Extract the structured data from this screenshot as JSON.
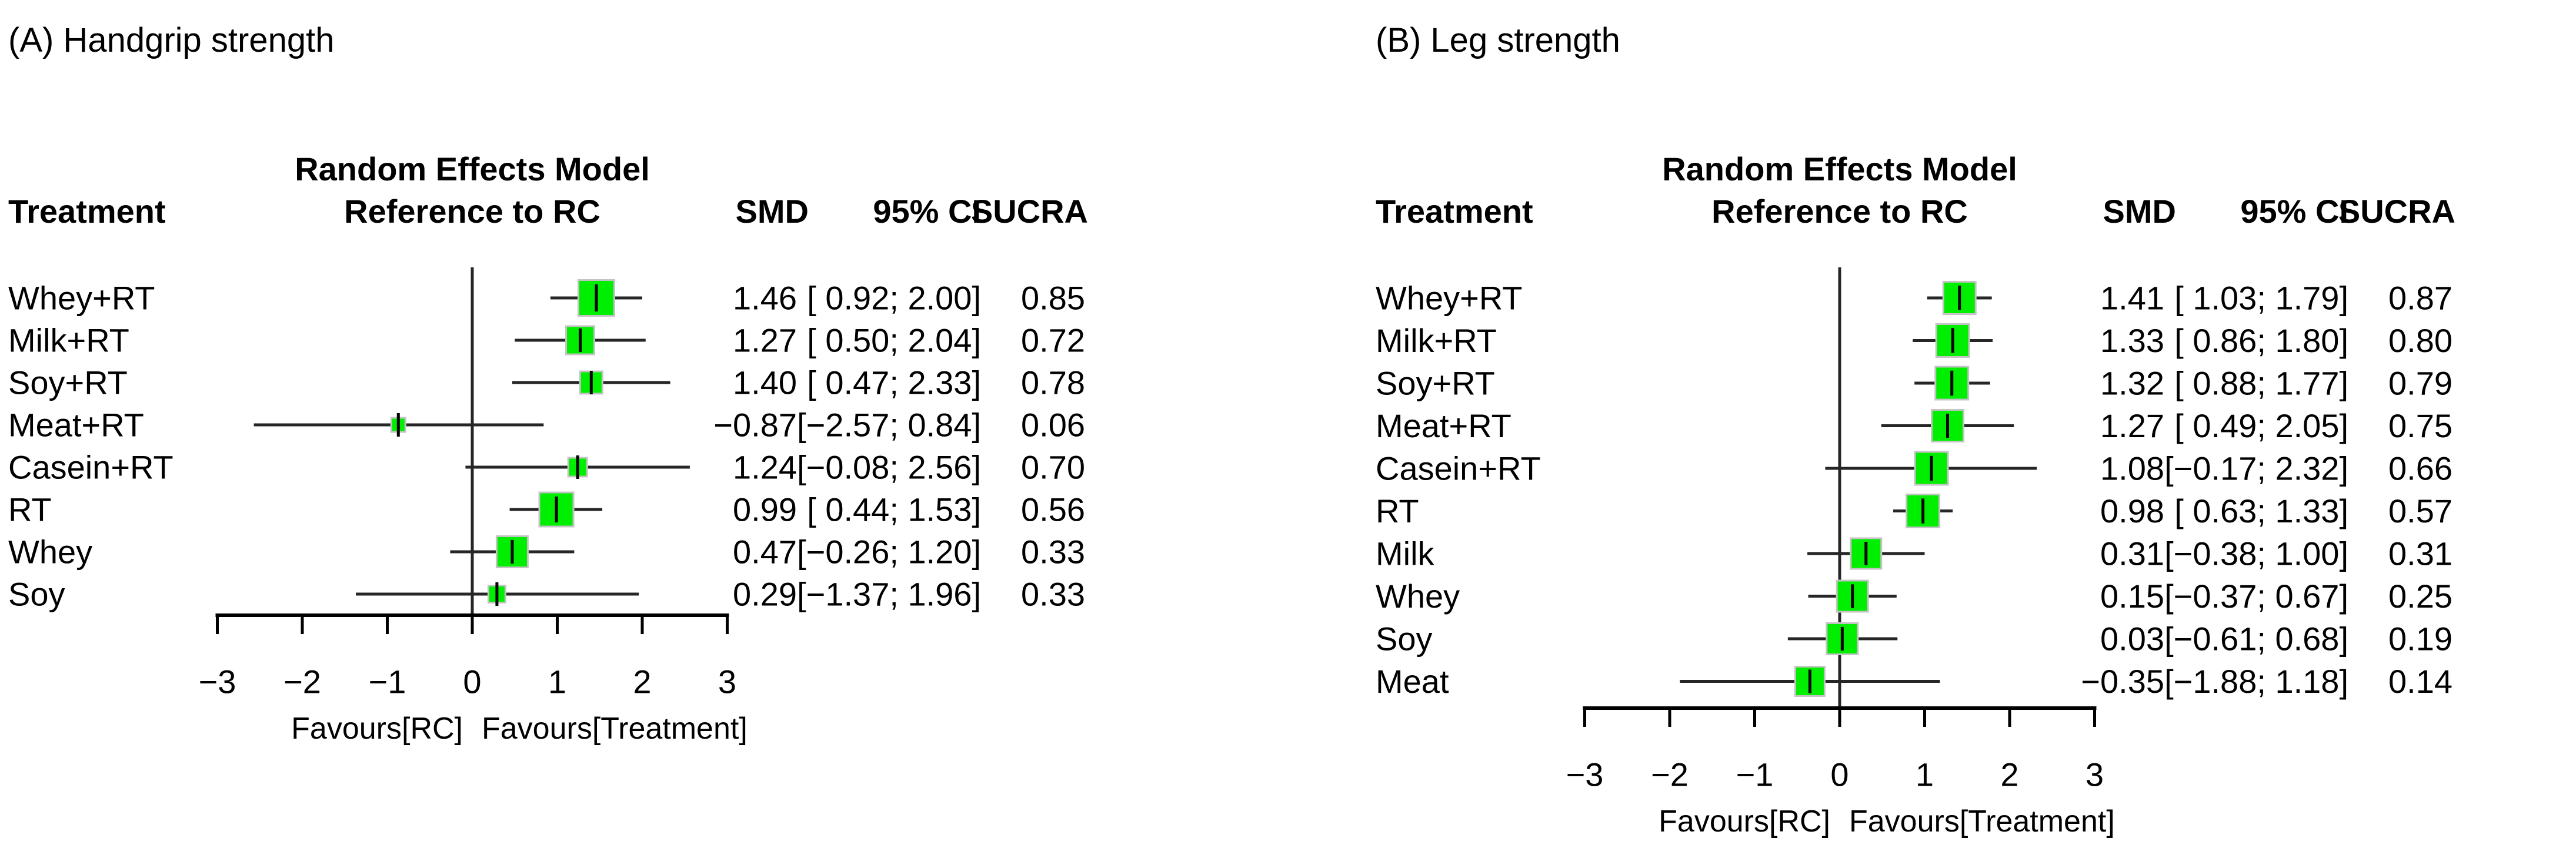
{
  "figure": {
    "background": "#ffffff",
    "colors": {
      "square_fill": "#00EE00",
      "square_border": "#c4c4c4",
      "ci_line": "#262626",
      "axis_line": "#000000",
      "text": "#000000"
    }
  },
  "chart_data": [
    {
      "type": "forest",
      "title": "(A) Handgrip strength",
      "header": {
        "model": "Random Effects Model",
        "treatment": "Treatment",
        "reference": "Reference to RC",
        "smd": "SMD",
        "ci": "95% CI",
        "sucra": "SUCRA"
      },
      "xlim": [
        -3,
        3
      ],
      "x_tick_values": [
        -3,
        -2,
        -1,
        0,
        1,
        2,
        3
      ],
      "x_tick_labels": [
        "−3",
        "−2",
        "−1",
        "0",
        "1",
        "2",
        "3"
      ],
      "xlabel_left": "Favours[RC]",
      "xlabel_right": "Favours[Treatment]",
      "zero_line": 0,
      "rows": [
        {
          "treatment": "Whey+RT",
          "smd": 1.46,
          "ci_low": 0.92,
          "ci_high": 2.0,
          "smd_label": "1.46",
          "ci_label": "[ 0.92; 2.00]",
          "sucra_label": "0.85",
          "square_size": 61
        },
        {
          "treatment": "Milk+RT",
          "smd": 1.27,
          "ci_low": 0.5,
          "ci_high": 2.04,
          "smd_label": "1.27",
          "ci_label": "[ 0.50; 2.04]",
          "sucra_label": "0.72",
          "square_size": 48
        },
        {
          "treatment": "Soy+RT",
          "smd": 1.4,
          "ci_low": 0.47,
          "ci_high": 2.33,
          "smd_label": "1.40",
          "ci_label": "[ 0.47; 2.33]",
          "sucra_label": "0.78",
          "square_size": 38
        },
        {
          "treatment": "Meat+RT",
          "smd": -0.87,
          "ci_low": -2.57,
          "ci_high": 0.84,
          "smd_label": "−0.87",
          "ci_label": "[−2.57; 0.84]",
          "sucra_label": "0.06",
          "square_size": 24
        },
        {
          "treatment": "Casein+RT",
          "smd": 1.24,
          "ci_low": -0.08,
          "ci_high": 2.56,
          "smd_label": "1.24",
          "ci_label": "[−0.08; 2.56]",
          "sucra_label": "0.70",
          "square_size": 32
        },
        {
          "treatment": "RT",
          "smd": 0.99,
          "ci_low": 0.44,
          "ci_high": 1.53,
          "smd_label": "0.99",
          "ci_label": "[ 0.44; 1.53]",
          "sucra_label": "0.56",
          "square_size": 58
        },
        {
          "treatment": "Whey",
          "smd": 0.47,
          "ci_low": -0.26,
          "ci_high": 1.2,
          "smd_label": "0.47",
          "ci_label": "[−0.26; 1.20]",
          "sucra_label": "0.33",
          "square_size": 53
        },
        {
          "treatment": "Soy",
          "smd": 0.29,
          "ci_low": -1.37,
          "ci_high": 1.96,
          "smd_label": "0.29",
          "ci_label": "[−1.37; 1.96]",
          "sucra_label": "0.33",
          "square_size": 29
        }
      ]
    },
    {
      "type": "forest",
      "title": "(B) Leg strength",
      "header": {
        "model": "Random Effects Model",
        "treatment": "Treatment",
        "reference": "Reference to RC",
        "smd": "SMD",
        "ci": "95% CI",
        "sucra": "SUCRA"
      },
      "xlim": [
        -3,
        3
      ],
      "x_tick_values": [
        -3,
        -2,
        -1,
        0,
        1,
        2,
        3
      ],
      "x_tick_labels": [
        "−3",
        "−2",
        "−1",
        "0",
        "1",
        "2",
        "3"
      ],
      "xlabel_left": "Favours[RC]",
      "xlabel_right": "Favours[Treatment]",
      "zero_line": 0,
      "rows": [
        {
          "treatment": "Whey+RT",
          "smd": 1.41,
          "ci_low": 1.03,
          "ci_high": 1.79,
          "smd_label": "1.41",
          "ci_label": "[ 1.03; 1.79]",
          "sucra_label": "0.87",
          "square_size": 55
        },
        {
          "treatment": "Milk+RT",
          "smd": 1.33,
          "ci_low": 0.86,
          "ci_high": 1.8,
          "smd_label": "1.33",
          "ci_label": "[ 0.86; 1.80]",
          "sucra_label": "0.80",
          "square_size": 56
        },
        {
          "treatment": "Soy+RT",
          "smd": 1.32,
          "ci_low": 0.88,
          "ci_high": 1.77,
          "smd_label": "1.32",
          "ci_label": "[ 0.88; 1.77]",
          "sucra_label": "0.79",
          "square_size": 56
        },
        {
          "treatment": "Meat+RT",
          "smd": 1.27,
          "ci_low": 0.49,
          "ci_high": 2.05,
          "smd_label": "1.27",
          "ci_label": "[ 0.49; 2.05]",
          "sucra_label": "0.75",
          "square_size": 54
        },
        {
          "treatment": "Casein+RT",
          "smd": 1.08,
          "ci_low": -0.17,
          "ci_high": 2.32,
          "smd_label": "1.08",
          "ci_label": "[−0.17; 2.32]",
          "sucra_label": "0.66",
          "square_size": 56
        },
        {
          "treatment": "RT",
          "smd": 0.98,
          "ci_low": 0.63,
          "ci_high": 1.33,
          "smd_label": "0.98",
          "ci_label": "[ 0.63; 1.33]",
          "sucra_label": "0.57",
          "square_size": 56
        },
        {
          "treatment": "Milk",
          "smd": 0.31,
          "ci_low": -0.38,
          "ci_high": 1.0,
          "smd_label": "0.31",
          "ci_label": "[−0.38; 1.00]",
          "sucra_label": "0.31",
          "square_size": 52
        },
        {
          "treatment": "Whey",
          "smd": 0.15,
          "ci_low": -0.37,
          "ci_high": 0.67,
          "smd_label": "0.15",
          "ci_label": "[−0.37; 0.67]",
          "sucra_label": "0.25",
          "square_size": 53
        },
        {
          "treatment": "Soy",
          "smd": 0.03,
          "ci_low": -0.61,
          "ci_high": 0.68,
          "smd_label": "0.03",
          "ci_label": "[−0.61; 0.68]",
          "sucra_label": "0.19",
          "square_size": 53
        },
        {
          "treatment": "Meat",
          "smd": -0.35,
          "ci_low": -1.88,
          "ci_high": 1.18,
          "smd_label": "−0.35",
          "ci_label": "[−1.88; 1.18]",
          "sucra_label": "0.14",
          "square_size": 50
        }
      ]
    }
  ]
}
